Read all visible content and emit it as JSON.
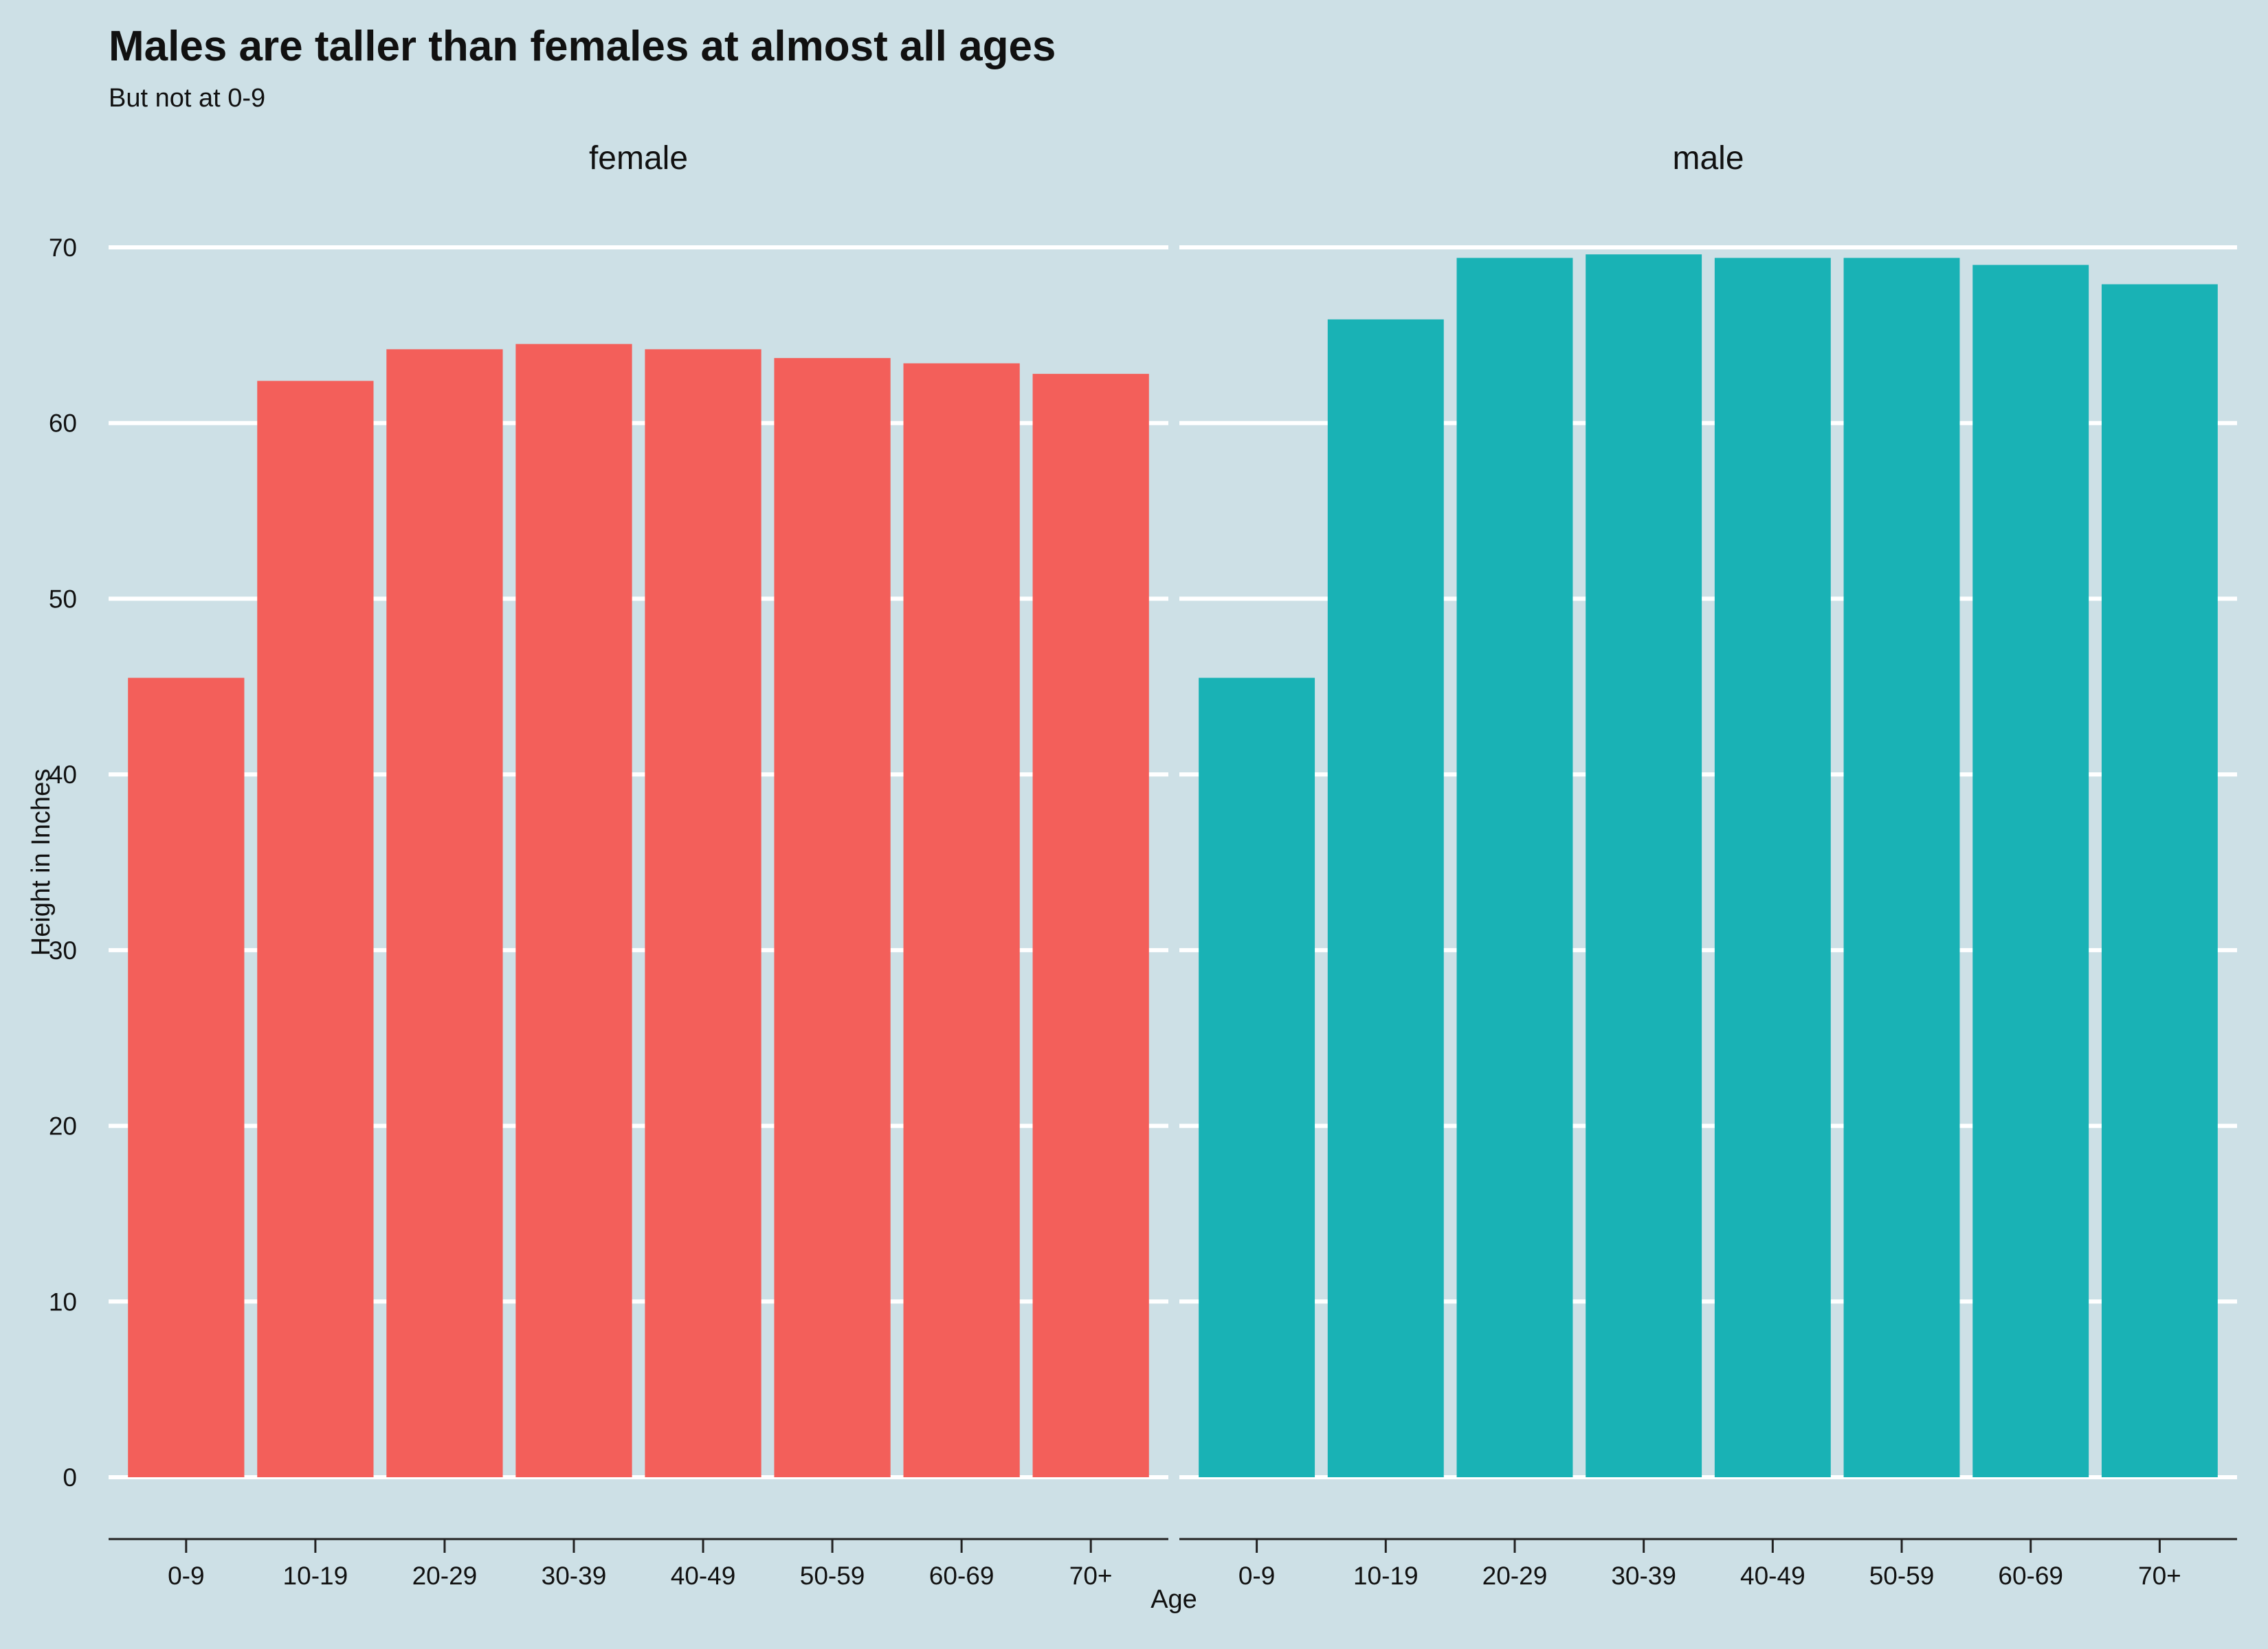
{
  "chart_data": {
    "type": "bar",
    "title": "Males are taller than females at almost all ages",
    "subtitle": "But not at 0-9",
    "xlabel": "Age",
    "ylabel": "Height in Inches",
    "ylim": [
      0,
      70
    ],
    "yticks": [
      0,
      10,
      20,
      30,
      40,
      50,
      60,
      70
    ],
    "grid": true,
    "legend": "none",
    "categories": [
      "0-9",
      "10-19",
      "20-29",
      "30-39",
      "40-49",
      "50-59",
      "60-69",
      "70+"
    ],
    "facets": [
      {
        "name": "female",
        "color": "#f35f5a",
        "values": [
          45.5,
          62.4,
          64.2,
          64.5,
          64.2,
          63.7,
          63.4,
          62.8
        ]
      },
      {
        "name": "male",
        "color": "#19b2b5",
        "values": [
          45.5,
          65.9,
          69.4,
          69.6,
          69.4,
          69.4,
          69.0,
          67.9
        ]
      }
    ]
  },
  "colors": {
    "background": "#cde0e6",
    "grid": "#ffffff",
    "axis": "#222222"
  }
}
